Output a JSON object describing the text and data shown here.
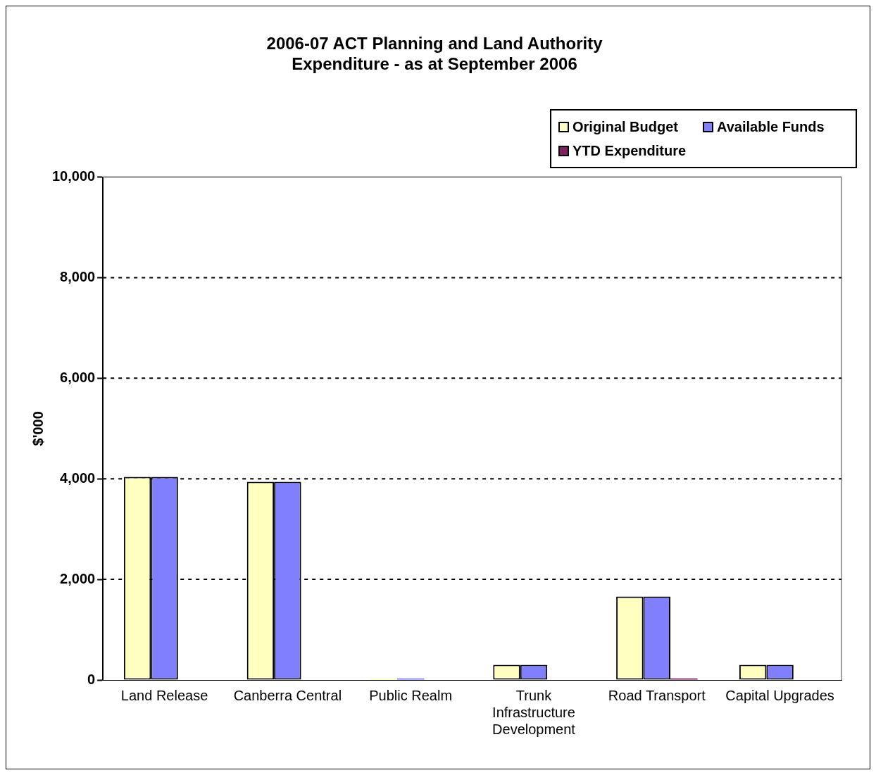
{
  "chart_data": {
    "type": "bar",
    "title": "2006-07 ACT Planning and Land Authority\nExpenditure - as at September 2006",
    "ylabel": "$'000",
    "categories": [
      "Land Release",
      "Canberra Central",
      "Public Realm",
      "Trunk Infrastructure Development",
      "Road Transport",
      "Capital Upgrades"
    ],
    "series": [
      {
        "name": "Original Budget",
        "color": "#ffffc0",
        "values": [
          4040,
          3940,
          30,
          300,
          1660,
          300
        ]
      },
      {
        "name": "Available Funds",
        "color": "#8080ff",
        "values": [
          4040,
          3940,
          30,
          300,
          1660,
          300
        ]
      },
      {
        "name": "YTD Expenditure",
        "color": "#802060",
        "values": [
          0,
          0,
          0,
          0,
          30,
          0
        ]
      }
    ],
    "ylim": [
      0,
      10000
    ],
    "yticks": [
      {
        "value": 0,
        "label": "0"
      },
      {
        "value": 2000,
        "label": "2,000"
      },
      {
        "value": 4000,
        "label": "4,000"
      },
      {
        "value": 6000,
        "label": "6,000"
      },
      {
        "value": 8000,
        "label": "8,000"
      },
      {
        "value": 10000,
        "label": "10,000"
      }
    ],
    "grid": "y",
    "legend": "top right"
  }
}
